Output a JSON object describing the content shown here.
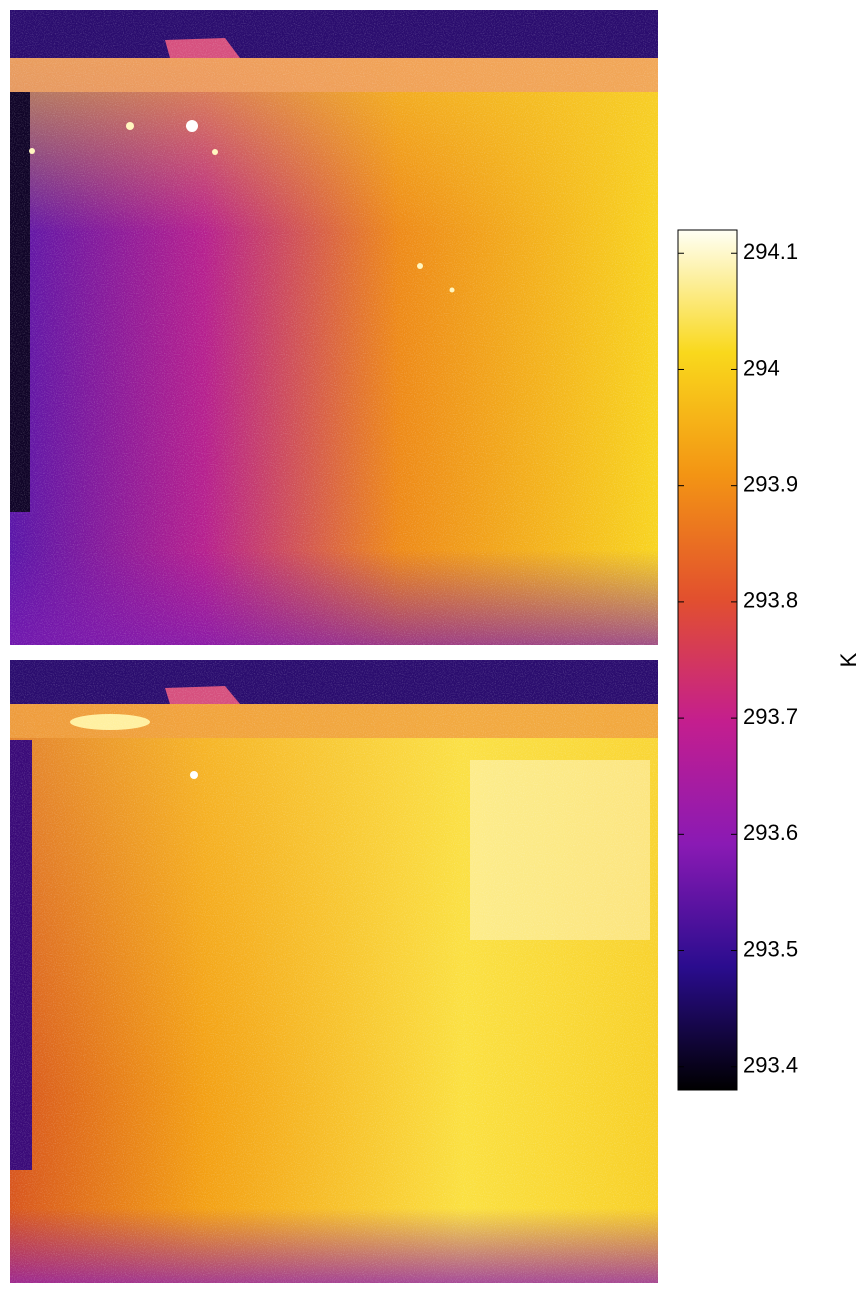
{
  "chart_data": {
    "type": "colorbar",
    "ylabel": "K",
    "ylim": [
      293.38,
      294.12
    ],
    "yticks": [
      293.4,
      293.5,
      293.6,
      293.7,
      293.8,
      293.9,
      294,
      294.1
    ],
    "colormap": [
      "#000000",
      "#2a0c8e",
      "#8a1ab4",
      "#c41e8e",
      "#e2502e",
      "#f39414",
      "#f9d81c",
      "#fffff4"
    ]
  }
}
